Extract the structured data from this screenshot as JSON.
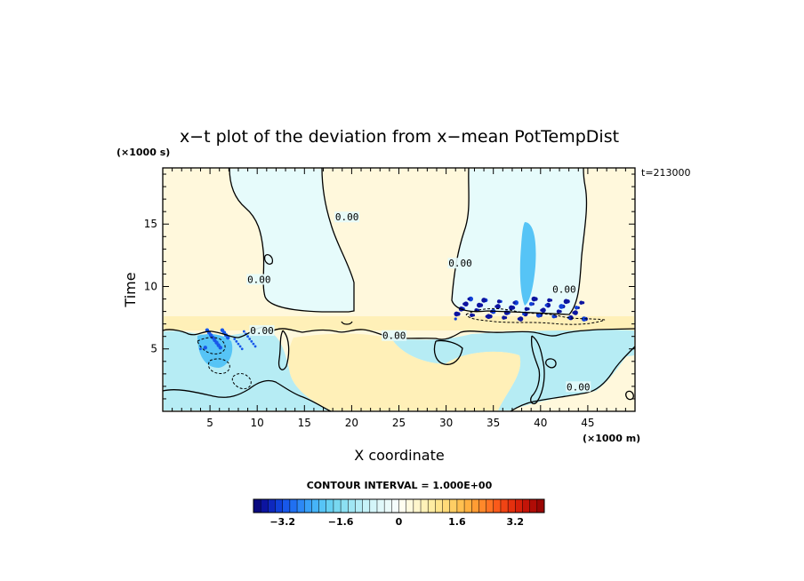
{
  "chart_data": {
    "type": "heatmap",
    "title": "x−t plot of the deviation from x−mean PotTempDist",
    "xlabel": "X coordinate",
    "ylabel": "Time",
    "x_unit": "(×1000 m)",
    "y_unit": "(×1000 s)",
    "annotation": "t=213000",
    "xlim": [
      0,
      50
    ],
    "ylim": [
      0,
      19.5
    ],
    "x_ticks": [
      5,
      10,
      15,
      20,
      25,
      30,
      35,
      40,
      45
    ],
    "y_ticks": [
      5,
      10,
      15
    ],
    "contour_interval_text": "CONTOUR INTERVAL = 1.000E+00",
    "contour_labels": [
      {
        "text": "0.00",
        "x": 19.5,
        "y": 15.5
      },
      {
        "text": "0.00",
        "x": 10.2,
        "y": 10.5
      },
      {
        "text": "0.00",
        "x": 31.5,
        "y": 11.8
      },
      {
        "text": "0.00",
        "x": 42.5,
        "y": 9.7
      },
      {
        "text": "0.00",
        "x": 10.5,
        "y": 6.4
      },
      {
        "text": "0.00",
        "x": 24.5,
        "y": 6.0
      },
      {
        "text": "0.00",
        "x": 44.0,
        "y": 1.9
      }
    ],
    "regions": [
      {
        "label": "upper-left negative",
        "x": [
          7,
          15
        ],
        "t": [
          8,
          19.5
        ],
        "sign": "negative"
      },
      {
        "label": "upper-right negative",
        "x": [
          31,
          45
        ],
        "t": [
          7,
          19.5
        ],
        "sign": "negative"
      },
      {
        "label": "lower-left negative",
        "x": [
          0,
          15
        ],
        "t": [
          0,
          7
        ],
        "sign": "negative"
      },
      {
        "label": "lower-right negative",
        "x": [
          28,
          50
        ],
        "t": [
          0,
          7
        ],
        "sign": "negative"
      },
      {
        "label": "band positive",
        "x": [
          0,
          50
        ],
        "t": [
          7,
          8
        ],
        "sign": "positive"
      },
      {
        "label": "center positive",
        "x": [
          15,
          30
        ],
        "t": [
          0,
          7
        ],
        "sign": "positive"
      }
    ],
    "colorbar": {
      "tick_labels": [
        "−3.2",
        "−1.6",
        "0",
        "1.6",
        "3.2"
      ],
      "tick_values": [
        -3.2,
        -1.6,
        0,
        1.6,
        3.2
      ],
      "range": [
        -4.0,
        4.0
      ],
      "step": 0.2,
      "colors": [
        "#0a0a80",
        "#0c14a0",
        "#0e28be",
        "#1040d8",
        "#1858ea",
        "#2070f2",
        "#2c88f6",
        "#38a0f8",
        "#46b4f8",
        "#56c4f6",
        "#66d0f2",
        "#78d8f0",
        "#8ce0f2",
        "#a0e6f4",
        "#b4ecf6",
        "#c6f2f8",
        "#d4f6fa",
        "#e0f8fa",
        "#eafafa",
        "#f4fcfc",
        "#fffef0",
        "#fffade",
        "#fff6cc",
        "#fff2b8",
        "#ffeca2",
        "#ffe48c",
        "#ffda78",
        "#ffce64",
        "#ffc050",
        "#ffb040",
        "#ff9c34",
        "#ff882a",
        "#ff7222",
        "#fa5a1a",
        "#f04414",
        "#e4300e",
        "#d6200a",
        "#c41408",
        "#b00c06",
        "#9a0604"
      ]
    },
    "colors": {
      "positive_light": "#fff8dc",
      "positive": "#fff0b8",
      "negative_light": "#e6fbfb",
      "negative": "#b6ecf4",
      "negative_strong": "#56c4f6"
    }
  }
}
